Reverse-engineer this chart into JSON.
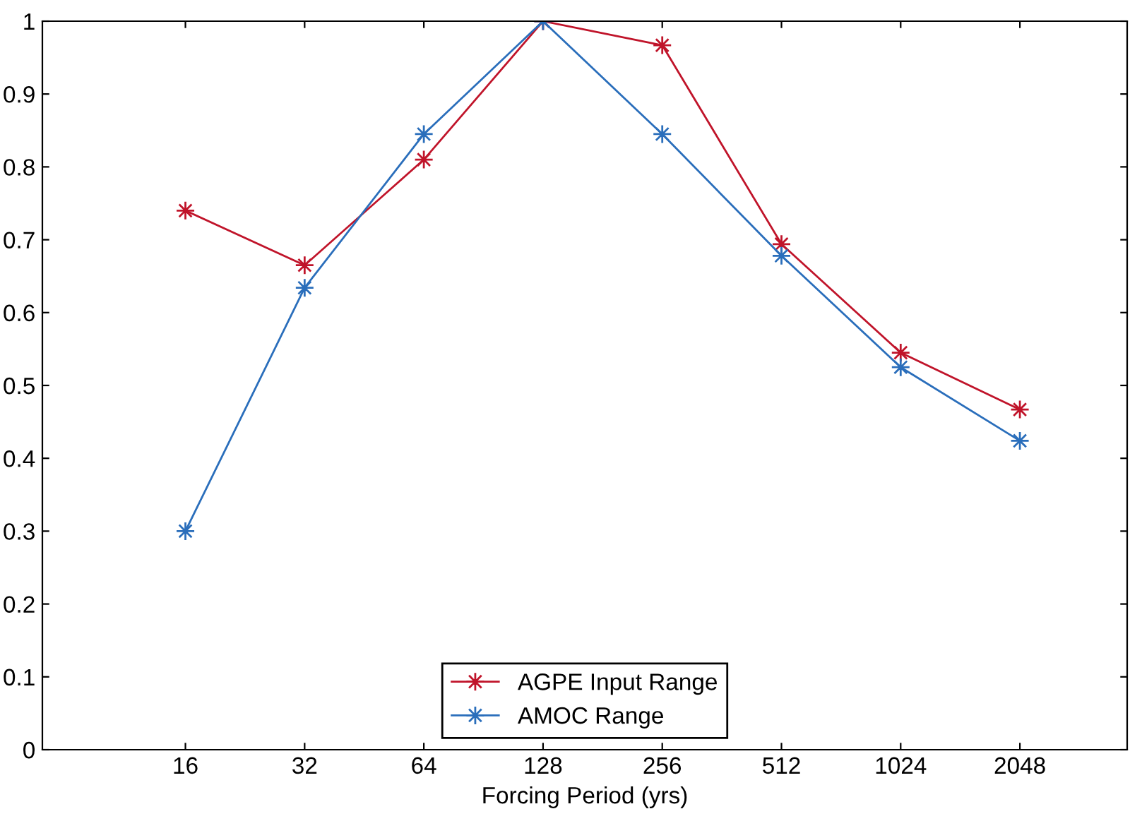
{
  "chart_data": {
    "type": "line",
    "xlabel": "Forcing Period (yrs)",
    "categories": [
      "16",
      "32",
      "64",
      "128",
      "256",
      "512",
      "1024",
      "2048"
    ],
    "series": [
      {
        "name": "AGPE Input Range",
        "color": "#c0142a",
        "values": [
          0.74,
          0.665,
          0.81,
          1.0,
          0.967,
          0.694,
          0.545,
          0.467
        ]
      },
      {
        "name": "AMOC Range",
        "color": "#2a6ebb",
        "values": [
          0.3,
          0.634,
          0.845,
          1.0,
          0.845,
          0.678,
          0.525,
          0.424
        ]
      }
    ],
    "ylim": [
      0,
      1
    ],
    "yticks": [
      0,
      0.1,
      0.2,
      0.3,
      0.4,
      0.5,
      0.6,
      0.7,
      0.8,
      0.9,
      1
    ],
    "grid": false,
    "legend": "bottom",
    "marker": "star",
    "line_style": "solid"
  }
}
